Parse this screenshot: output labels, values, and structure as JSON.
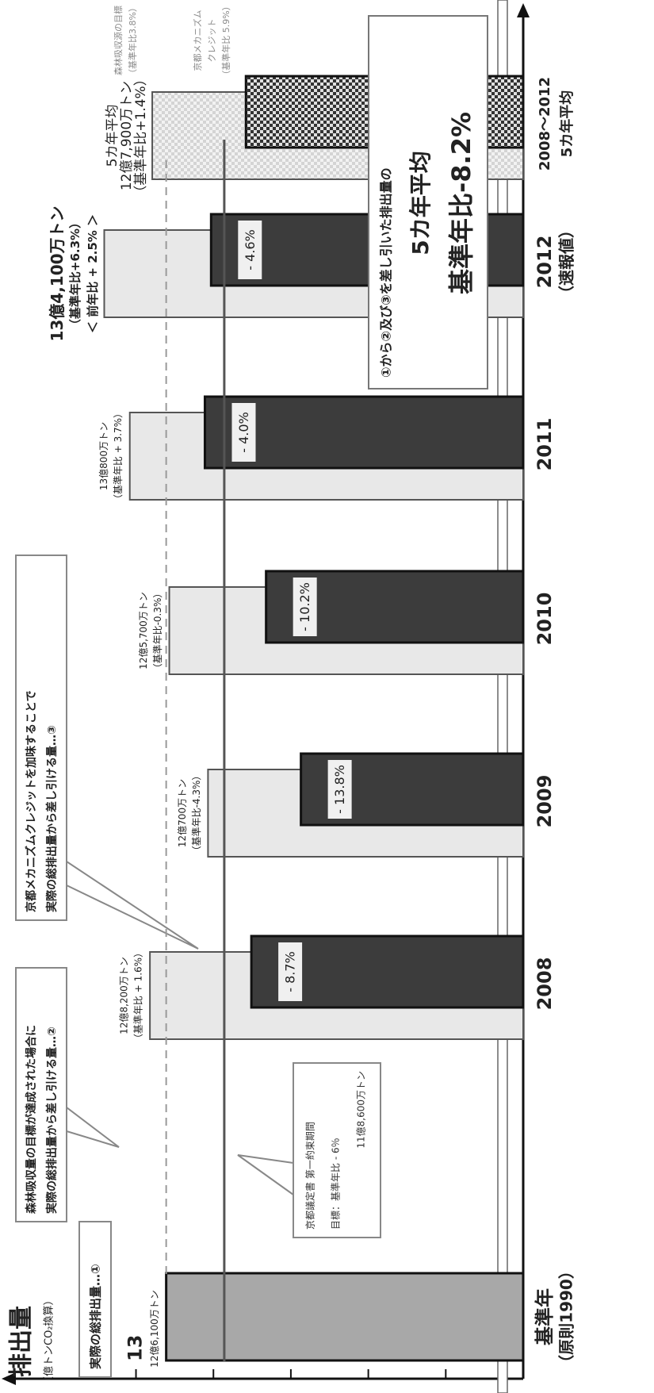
{
  "chart_data": {
    "type": "bar",
    "title": "排出量",
    "y_label": "（億トンCO₂換算）",
    "categories": [
      "基準年",
      "2008",
      "2009",
      "2010",
      "2011",
      "2012",
      "2008～2012"
    ],
    "category_sublabels": [
      "（原則1990）",
      null,
      null,
      null,
      null,
      "（速報値）",
      "5カ年平均"
    ],
    "series": [
      {
        "name": "実際の総排出量…①",
        "color": "#e8e8e8",
        "values": [
          12.61,
          12.82,
          12.07,
          12.57,
          13.08,
          13.41,
          12.79
        ]
      },
      {
        "color": "#3c3c3c",
        "values": [
          null,
          11.51,
          10.87,
          11.32,
          12.11,
          12.03,
          11.58
        ]
      }
    ],
    "base_year_color": "#a8a8a8",
    "ylim": [
      8,
      14.5
    ],
    "yticks": [
      9,
      10,
      11,
      12,
      13
    ],
    "reduction_labels": [
      null,
      "- 8.7%",
      "- 13.8%",
      "- 10.2%",
      "- 4.0%",
      "- 4.6%",
      null
    ],
    "bar_labels": [
      [
        "12億6,100万トン"
      ],
      [
        "12億8,200万トン",
        "（基準年比 + 1.6%）"
      ],
      [
        "12億700万トン",
        "（基準年比-4.3%）"
      ],
      [
        "12億5,700万トン",
        "（基準年比-0.3%）"
      ],
      [
        "13億800万トン",
        "（基準年比 + 3.7%）"
      ],
      [
        "13億4,100万トン",
        "（基準年比+6.3%）",
        "＜ 前年比 + 2.5% ＞"
      ],
      [
        "5カ年平均",
        "12億7,900万トン",
        "（基準年比+1.4%）"
      ]
    ],
    "target": {
      "value": 11.86,
      "lines": [
        "京都議定書 第一約束期間",
        "目標：基準年比 - 6％",
        "11億8,600万トン"
      ]
    },
    "notes": {
      "forest": [
        "森林吸収量の目標が達成された場合に",
        "実際の総排出量から差し引ける量…②"
      ],
      "kyoto": [
        "京都メカニズムクレジットを加味することで",
        "実際の総排出量から差し引ける量…③"
      ],
      "forest_target": [
        "森林吸収源の目標",
        "（基準年比3.8%）"
      ],
      "kyoto_credit": [
        "京都メカニズム",
        "クレジット",
        "（基準年比 5.9%）"
      ],
      "summary": [
        "①から②及び③を差し引いた排出量の",
        "5カ年平均",
        "基準年比-8.2%"
      ]
    }
  }
}
